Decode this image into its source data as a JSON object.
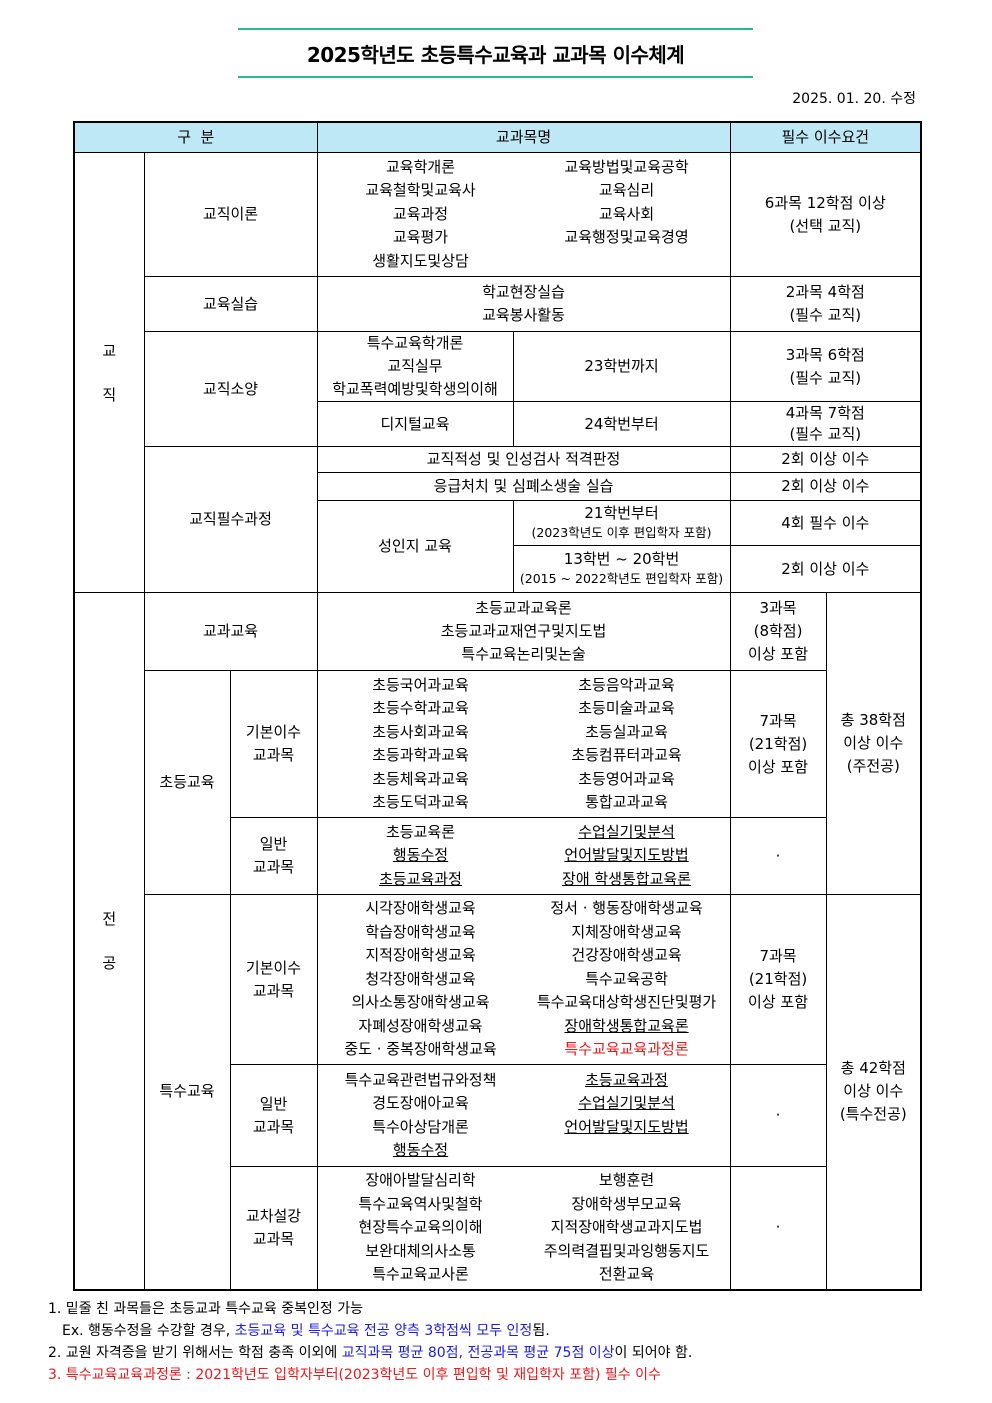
{
  "title": "2025학년도 초등특수교육과 교과목 이수체계",
  "revised": "2025. 01. 20. 수정",
  "header": {
    "division": "구  분",
    "courses": "교과목명",
    "requirement": "필수 이수요건"
  },
  "teaching": {
    "label_top": "교",
    "label_bottom": "직",
    "theory": {
      "label": "교직이론",
      "courses": [
        {
          "t": "교육학개론"
        },
        {
          "t": "교육방법및교육공학"
        },
        {
          "t": "교육철학및교육사"
        },
        {
          "t": "교육심리"
        },
        {
          "t": "교육과정"
        },
        {
          "t": "교육사회"
        },
        {
          "t": "교육평가"
        },
        {
          "t": "교육행정및교육경영"
        },
        {
          "t": "생활지도및상담"
        }
      ],
      "req_line1": "6과목 12학점 이상",
      "req_line2": "(선택 교직)"
    },
    "practice": {
      "label": "교육실습",
      "course1": "학교현장실습",
      "course2": "교육봉사활동",
      "req_line1": "2과목 4학점",
      "req_line2": "(필수 교직)"
    },
    "literacy": {
      "label": "교직소양",
      "a_courses": [
        "특수교육학개론",
        "교직실무",
        "학교폭력예방및학생의이해"
      ],
      "a_cohort": "23학번까지",
      "a_req1": "3과목 6학점",
      "a_req2": "(필수 교직)",
      "b_course": "디지털교육",
      "b_cohort": "24학번부터",
      "b_req1": "4과목 7학점",
      "b_req2": "(필수 교직)"
    },
    "mandatory": {
      "label": "교직필수과정",
      "aptitude": "교직적성 및 인성검사 적격판정",
      "aptitude_req": "2회 이상 이수",
      "cpr": "응급처치 및 심폐소생술 실습",
      "cpr_req": "2회 이상 이수",
      "gender": "성인지 교육",
      "g_a_cohort": "21학번부터",
      "g_a_note": "(2023학년도 이후 편입학자 포함)",
      "g_a_req": "4회 필수 이수",
      "g_b_cohort": "13학번 ~ 20학번",
      "g_b_note": "(2015 ~ 2022학년도 편입학자 포함)",
      "g_b_req": "2회 이상 이수"
    }
  },
  "major": {
    "label_top": "전",
    "label_bottom": "공",
    "subject_ed": {
      "label": "교과교육",
      "courses": [
        "초등교과교육론",
        "초등교과교재연구및지도법",
        "특수교육논리및논술"
      ],
      "req": [
        "3과목",
        "(8학점)",
        "이상 포함"
      ]
    },
    "elementary": {
      "label": "초등교육",
      "total": [
        "총 38학점",
        "이상 이수",
        "(주전공)"
      ],
      "basic": {
        "label": [
          "기본이수",
          "교과목"
        ],
        "courses": [
          {
            "t": "초등국어과교육"
          },
          {
            "t": "초등음악과교육"
          },
          {
            "t": "초등수학과교육"
          },
          {
            "t": "초등미술과교육"
          },
          {
            "t": "초등사회과교육"
          },
          {
            "t": "초등실과교육"
          },
          {
            "t": "초등과학과교육"
          },
          {
            "t": "초등컴퓨터과교육"
          },
          {
            "t": "초등체육과교육"
          },
          {
            "t": "초등영어과교육"
          },
          {
            "t": "초등도덕과교육"
          },
          {
            "t": "통합교과교육"
          }
        ],
        "req": [
          "7과목",
          "(21학점)",
          "이상 포함"
        ]
      },
      "general": {
        "label": [
          "일반",
          "교과목"
        ],
        "courses": [
          {
            "t": "초등교육론"
          },
          {
            "t": "수업실기및분석",
            "u": true
          },
          {
            "t": "행동수정",
            "u": true
          },
          {
            "t": "언어발달및지도방법",
            "u": true
          },
          {
            "t": "초등교육과정",
            "u": true
          },
          {
            "t": "장애 학생통합교육론",
            "u": true
          }
        ],
        "req": "·"
      }
    },
    "special": {
      "label": "특수교육",
      "total": [
        "총 42학점",
        "이상 이수",
        "(특수전공)"
      ],
      "basic": {
        "label": [
          "기본이수",
          "교과목"
        ],
        "courses": [
          {
            "t": "시각장애학생교육"
          },
          {
            "t": "정서 · 행동장애학생교육"
          },
          {
            "t": "학습장애학생교육"
          },
          {
            "t": "지체장애학생교육"
          },
          {
            "t": "지적장애학생교육"
          },
          {
            "t": "건강장애학생교육"
          },
          {
            "t": "청각장애학생교육"
          },
          {
            "t": "특수교육공학"
          },
          {
            "t": "의사소통장애학생교육"
          },
          {
            "t": "특수교육대상학생진단및평가"
          },
          {
            "t": "자폐성장애학생교육"
          },
          {
            "t": "장애학생통합교육론",
            "u": true
          },
          {
            "t": "중도 · 중복장애학생교육"
          },
          {
            "t": "특수교육교육과정론",
            "red": true
          }
        ],
        "req": [
          "7과목",
          "(21학점)",
          "이상 포함"
        ]
      },
      "general": {
        "label": [
          "일반",
          "교과목"
        ],
        "courses": [
          {
            "t": "특수교육관련법규와정책"
          },
          {
            "t": "초등교육과정",
            "u": true
          },
          {
            "t": "경도장애아교육"
          },
          {
            "t": "수업실기및분석",
            "u": true
          },
          {
            "t": "특수아상담개론"
          },
          {
            "t": "언어발달및지도방법",
            "u": true
          },
          {
            "t": "행동수정",
            "u": true
          }
        ],
        "req": "·"
      },
      "cross": {
        "label": [
          "교차설강",
          "교과목"
        ],
        "courses": [
          {
            "t": "장애아발달심리학"
          },
          {
            "t": "보행훈련"
          },
          {
            "t": "특수교육역사및철학"
          },
          {
            "t": "장애학생부모교육"
          },
          {
            "t": "현장특수교육의이해"
          },
          {
            "t": "지적장애학생교과지도법"
          },
          {
            "t": "보완대체의사소통"
          },
          {
            "t": "주의력결핍및과잉행동지도"
          },
          {
            "t": "특수교육교사론"
          },
          {
            "t": "전환교육"
          }
        ],
        "req": "·"
      }
    }
  },
  "notes": {
    "n1": "1. 밑줄 친 과목들은 초등교과 특수교육 중복인정 가능",
    "ex_prefix": "Ex. 행동수정을 수강할 경우, ",
    "ex_blue": "초등교육 및 특수교육 전공 양측 3학점씩 모두 인정",
    "ex_suffix": "됨.",
    "n2_prefix": "2. 교원 자격증을 받기 위해서는 학점 충족 이외에 ",
    "n2_blue": "교직과목 평균 80점, 전공과목 평균 75점 이상",
    "n2_suffix": "이 되어야 함.",
    "n3": "3. 특수교육교육과정론 : 2021학년도 입학자부터(2023학년도 이후 편입학 및 재입학자 포함) 필수 이수"
  },
  "colors": {
    "header_bg": "#bfe8f6",
    "title_rule": "#2bb39b",
    "red": "#e8191b",
    "blue": "#1d1de0"
  }
}
